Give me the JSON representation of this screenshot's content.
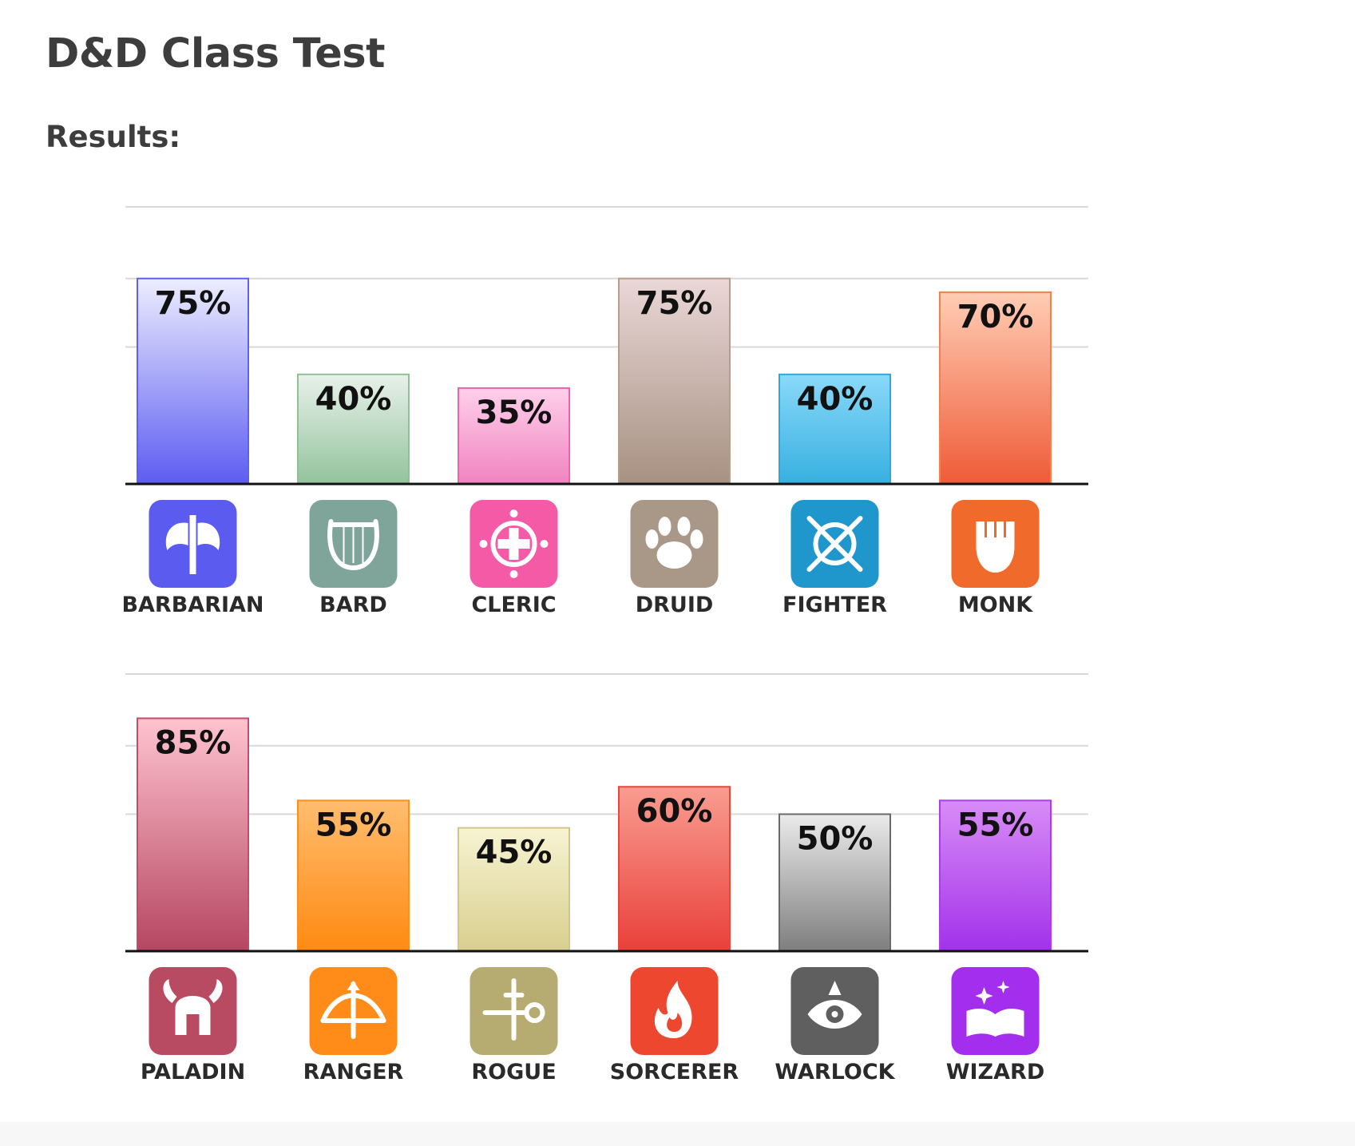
{
  "page": {
    "title": "D&D Class Test",
    "subtitle": "Results:"
  },
  "chart_data": [
    {
      "type": "bar",
      "ylim": [
        0,
        100
      ],
      "grid": true,
      "categories": [
        "BARBARIAN",
        "BARD",
        "CLERIC",
        "DRUID",
        "FIGHTER",
        "MONK"
      ],
      "values": [
        75,
        40,
        35,
        75,
        40,
        70
      ],
      "labels": [
        "75%",
        "40%",
        "35%",
        "75%",
        "40%",
        "70%"
      ],
      "colors": [
        {
          "top": "#ededff",
          "bottom": "#5c5cf2",
          "stroke": "#5f5ff0",
          "icon": "#5b5bf0",
          "glyph": "axe-icon"
        },
        {
          "top": "#e8f1ea",
          "bottom": "#93c39c",
          "stroke": "#92bf9a",
          "icon": "#7fa59b",
          "glyph": "lyre-icon"
        },
        {
          "top": "#ffd0ea",
          "bottom": "#f083c0",
          "stroke": "#ef62ae",
          "icon": "#f55aa6",
          "glyph": "holy-symbol-icon"
        },
        {
          "top": "#ead7d7",
          "bottom": "#a69181",
          "stroke": "#b59f8c",
          "icon": "#a99888",
          "glyph": "paw-icon"
        },
        {
          "top": "#8ad9f9",
          "bottom": "#37b0e0",
          "stroke": "#2ea7dc",
          "icon": "#1f97cc",
          "glyph": "crossed-swords-icon"
        },
        {
          "top": "#ffcdb5",
          "bottom": "#ef5b37",
          "stroke": "#f08050",
          "icon": "#f06a2c",
          "glyph": "fist-icon"
        }
      ]
    },
    {
      "type": "bar",
      "ylim": [
        0,
        100
      ],
      "grid": true,
      "categories": [
        "PALADIN",
        "RANGER",
        "ROGUE",
        "SORCERER",
        "WARLOCK",
        "WIZARD"
      ],
      "values": [
        85,
        55,
        45,
        60,
        50,
        55
      ],
      "labels": [
        "85%",
        "55%",
        "45%",
        "60%",
        "50%",
        "55%"
      ],
      "colors": [
        {
          "top": "#ffc3cf",
          "bottom": "#b54661",
          "stroke": "#c14d68",
          "icon": "#b84a62",
          "glyph": "helmet-icon"
        },
        {
          "top": "#ffbd6f",
          "bottom": "#ff8a12",
          "stroke": "#ff8f1a",
          "icon": "#ff8b18",
          "glyph": "bow-icon"
        },
        {
          "top": "#f8f3d3",
          "bottom": "#d8cf8e",
          "stroke": "#cfc78a",
          "icon": "#b6ac71",
          "glyph": "dagger-key-icon"
        },
        {
          "top": "#f99c90",
          "bottom": "#e9403a",
          "stroke": "#e8473c",
          "icon": "#ee4730",
          "glyph": "flame-icon"
        },
        {
          "top": "#ebebeb",
          "bottom": "#7e7e7e",
          "stroke": "#6a6a6a",
          "icon": "#5f5f5f",
          "glyph": "eye-icon"
        },
        {
          "top": "#d88cf7",
          "bottom": "#a231ea",
          "stroke": "#a93cec",
          "icon": "#a42eed",
          "glyph": "spellbook-icon"
        }
      ]
    }
  ]
}
